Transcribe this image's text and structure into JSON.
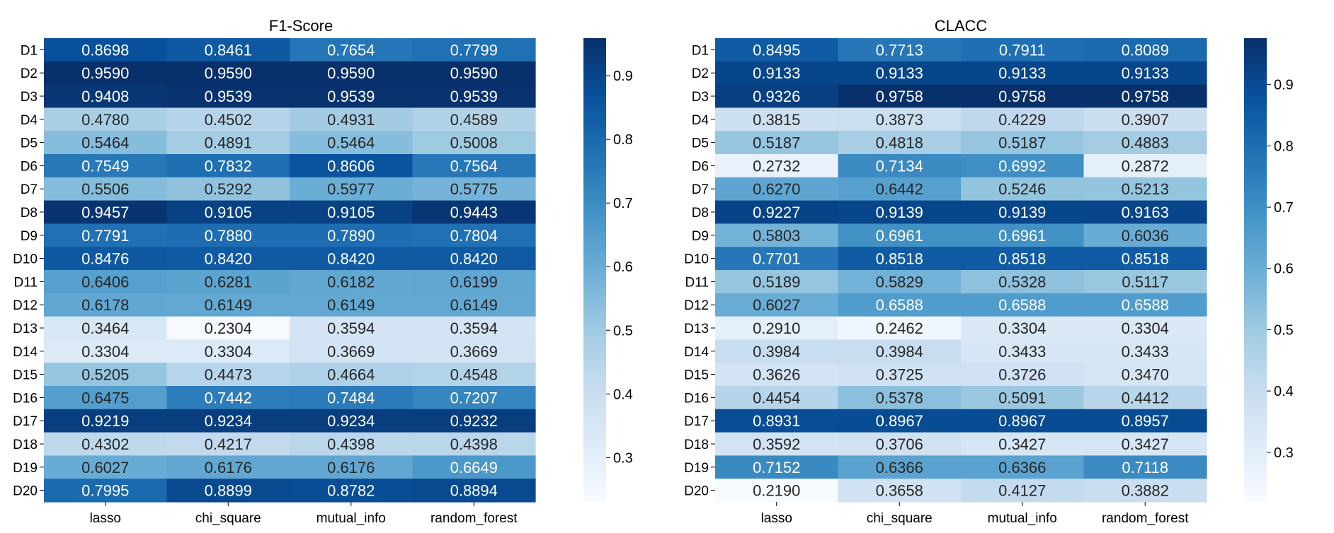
{
  "chart_data": [
    {
      "type": "heatmap",
      "title": "F1-Score",
      "colormap": "Blues",
      "rows": [
        "D1",
        "D2",
        "D3",
        "D4",
        "D5",
        "D6",
        "D7",
        "D8",
        "D9",
        "D10",
        "D11",
        "D12",
        "D13",
        "D14",
        "D15",
        "D16",
        "D17",
        "D18",
        "D19",
        "D20"
      ],
      "columns": [
        "lasso",
        "chi_square",
        "mutual_info",
        "random_forest"
      ],
      "values": [
        [
          "0.8698",
          "0.8461",
          "0.7654",
          "0.7799"
        ],
        [
          "0.9590",
          "0.9590",
          "0.9590",
          "0.9590"
        ],
        [
          "0.9408",
          "0.9539",
          "0.9539",
          "0.9539"
        ],
        [
          "0.4780",
          "0.4502",
          "0.4931",
          "0.4589"
        ],
        [
          "0.5464",
          "0.4891",
          "0.5464",
          "0.5008"
        ],
        [
          "0.7549",
          "0.7832",
          "0.8606",
          "0.7564"
        ],
        [
          "0.5506",
          "0.5292",
          "0.5977",
          "0.5775"
        ],
        [
          "0.9457",
          "0.9105",
          "0.9105",
          "0.9443"
        ],
        [
          "0.7791",
          "0.7880",
          "0.7890",
          "0.7804"
        ],
        [
          "0.8476",
          "0.8420",
          "0.8420",
          "0.8420"
        ],
        [
          "0.6406",
          "0.6281",
          "0.6182",
          "0.6199"
        ],
        [
          "0.6178",
          "0.6149",
          "0.6149",
          "0.6149"
        ],
        [
          "0.3464",
          "0.2304",
          "0.3594",
          "0.3594"
        ],
        [
          "0.3304",
          "0.3304",
          "0.3669",
          "0.3669"
        ],
        [
          "0.5205",
          "0.4473",
          "0.4664",
          "0.4548"
        ],
        [
          "0.6475",
          "0.7442",
          "0.7484",
          "0.7207"
        ],
        [
          "0.9219",
          "0.9234",
          "0.9234",
          "0.9232"
        ],
        [
          "0.4302",
          "0.4217",
          "0.4398",
          "0.4398"
        ],
        [
          "0.6027",
          "0.6176",
          "0.6176",
          "0.6649"
        ],
        [
          "0.7995",
          "0.8899",
          "0.8782",
          "0.8894"
        ]
      ],
      "colorbar": {
        "vmin": 0.2304,
        "vmax": 0.959,
        "ticks": [
          "0.3",
          "0.4",
          "0.5",
          "0.6",
          "0.7",
          "0.8",
          "0.9"
        ]
      }
    },
    {
      "type": "heatmap",
      "title": "CLACC",
      "colormap": "Blues",
      "rows": [
        "D1",
        "D2",
        "D3",
        "D4",
        "D5",
        "D6",
        "D7",
        "D8",
        "D9",
        "D10",
        "D11",
        "D12",
        "D13",
        "D14",
        "D15",
        "D16",
        "D17",
        "D18",
        "D19",
        "D20"
      ],
      "columns": [
        "lasso",
        "chi_square",
        "mutual_info",
        "random_forest"
      ],
      "values": [
        [
          "0.8495",
          "0.7713",
          "0.7911",
          "0.8089"
        ],
        [
          "0.9133",
          "0.9133",
          "0.9133",
          "0.9133"
        ],
        [
          "0.9326",
          "0.9758",
          "0.9758",
          "0.9758"
        ],
        [
          "0.3815",
          "0.3873",
          "0.4229",
          "0.3907"
        ],
        [
          "0.5187",
          "0.4818",
          "0.5187",
          "0.4883"
        ],
        [
          "0.2732",
          "0.7134",
          "0.6992",
          "0.2872"
        ],
        [
          "0.6270",
          "0.6442",
          "0.5246",
          "0.5213"
        ],
        [
          "0.9227",
          "0.9139",
          "0.9139",
          "0.9163"
        ],
        [
          "0.5803",
          "0.6961",
          "0.6961",
          "0.6036"
        ],
        [
          "0.7701",
          "0.8518",
          "0.8518",
          "0.8518"
        ],
        [
          "0.5189",
          "0.5829",
          "0.5328",
          "0.5117"
        ],
        [
          "0.6027",
          "0.6588",
          "0.6588",
          "0.6588"
        ],
        [
          "0.2910",
          "0.2462",
          "0.3304",
          "0.3304"
        ],
        [
          "0.3984",
          "0.3984",
          "0.3433",
          "0.3433"
        ],
        [
          "0.3626",
          "0.3725",
          "0.3726",
          "0.3470"
        ],
        [
          "0.4454",
          "0.5378",
          "0.5091",
          "0.4412"
        ],
        [
          "0.8931",
          "0.8967",
          "0.8967",
          "0.8957"
        ],
        [
          "0.3592",
          "0.3706",
          "0.3427",
          "0.3427"
        ],
        [
          "0.7152",
          "0.6366",
          "0.6366",
          "0.7118"
        ],
        [
          "0.2190",
          "0.3658",
          "0.4127",
          "0.3882"
        ]
      ],
      "colorbar": {
        "vmin": 0.219,
        "vmax": 0.9758,
        "ticks": [
          "0.3",
          "0.4",
          "0.5",
          "0.6",
          "0.7",
          "0.8",
          "0.9"
        ]
      }
    }
  ]
}
